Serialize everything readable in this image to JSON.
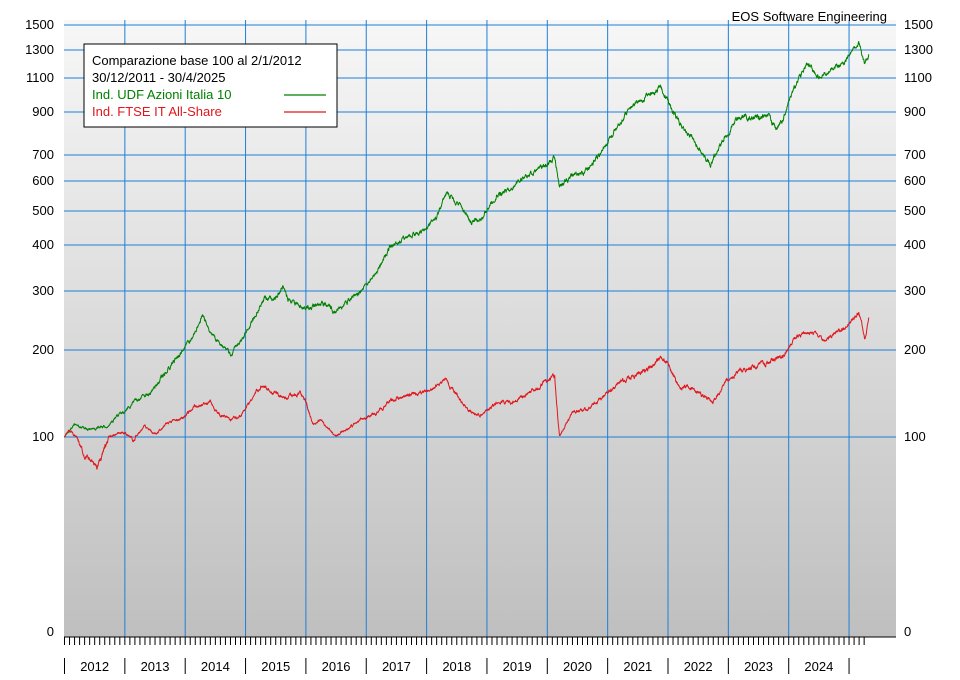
{
  "credit": "EOS Software Engineering",
  "legend": {
    "title": "Comparazione base 100 al 2/1/2012",
    "range": "30/12/2011 - 30/4/2025"
  },
  "colors": {
    "udf": "#008000",
    "ftse": "#e0161b",
    "grid": "#1e7fd6",
    "bg_top": "#f7f7f7",
    "bg_bottom": "#bfbfbf"
  },
  "chart_data": {
    "type": "line",
    "y_scale": "log-like",
    "ylim": [
      0,
      1500
    ],
    "y_ticks": [
      0,
      100,
      200,
      300,
      400,
      500,
      600,
      700,
      900,
      1100,
      1300,
      1500
    ],
    "x_ticks": [
      "2012",
      "2013",
      "2014",
      "2015",
      "2016",
      "2017",
      "2018",
      "2019",
      "2020",
      "2021",
      "2022",
      "2023",
      "2024"
    ],
    "xlim": [
      "2011-12-30",
      "2025-04-30"
    ],
    "grid": true,
    "legend_position": "top-left",
    "series": [
      {
        "name": "Ind. UDF Azioni Italia 10",
        "color": "#008000",
        "points": [
          [
            "2011-12-30",
            100
          ],
          [
            "2012-03-01",
            115
          ],
          [
            "2012-06-01",
            108
          ],
          [
            "2012-09-01",
            112
          ],
          [
            "2012-12-01",
            125
          ],
          [
            "2013-03-01",
            140
          ],
          [
            "2013-06-01",
            150
          ],
          [
            "2013-09-01",
            175
          ],
          [
            "2013-12-01",
            195
          ],
          [
            "2014-03-01",
            230
          ],
          [
            "2014-04-15",
            260
          ],
          [
            "2014-06-01",
            230
          ],
          [
            "2014-08-01",
            210
          ],
          [
            "2014-10-01",
            195
          ],
          [
            "2014-12-01",
            215
          ],
          [
            "2015-03-01",
            260
          ],
          [
            "2015-05-01",
            290
          ],
          [
            "2015-07-01",
            285
          ],
          [
            "2015-08-15",
            310
          ],
          [
            "2015-10-01",
            280
          ],
          [
            "2016-01-01",
            270
          ],
          [
            "2016-04-01",
            280
          ],
          [
            "2016-07-01",
            265
          ],
          [
            "2016-09-01",
            280
          ],
          [
            "2016-12-01",
            300
          ],
          [
            "2017-03-01",
            340
          ],
          [
            "2017-06-01",
            400
          ],
          [
            "2017-09-01",
            420
          ],
          [
            "2017-12-01",
            440
          ],
          [
            "2018-03-01",
            480
          ],
          [
            "2018-05-01",
            560
          ],
          [
            "2018-07-01",
            530
          ],
          [
            "2018-10-01",
            470
          ],
          [
            "2018-12-01",
            480
          ],
          [
            "2019-03-01",
            550
          ],
          [
            "2019-06-01",
            580
          ],
          [
            "2019-09-01",
            620
          ],
          [
            "2019-12-01",
            650
          ],
          [
            "2020-02-15",
            690
          ],
          [
            "2020-03-15",
            580
          ],
          [
            "2020-06-01",
            620
          ],
          [
            "2020-09-01",
            640
          ],
          [
            "2020-12-01",
            720
          ],
          [
            "2021-03-01",
            830
          ],
          [
            "2021-06-01",
            940
          ],
          [
            "2021-09-01",
            1000
          ],
          [
            "2021-11-15",
            1050
          ],
          [
            "2021-12-15",
            1000
          ],
          [
            "2022-03-01",
            850
          ],
          [
            "2022-06-01",
            780
          ],
          [
            "2022-09-15",
            660
          ],
          [
            "2022-12-01",
            770
          ],
          [
            "2023-03-01",
            880
          ],
          [
            "2023-06-01",
            870
          ],
          [
            "2023-09-01",
            880
          ],
          [
            "2023-10-15",
            810
          ],
          [
            "2023-12-01",
            880
          ],
          [
            "2024-03-01",
            1100
          ],
          [
            "2024-05-01",
            1200
          ],
          [
            "2024-07-01",
            1100
          ],
          [
            "2024-09-01",
            1150
          ],
          [
            "2024-12-01",
            1200
          ],
          [
            "2025-02-01",
            1320
          ],
          [
            "2025-03-01",
            1350
          ],
          [
            "2025-04-08",
            1200
          ],
          [
            "2025-04-30",
            1270
          ]
        ]
      },
      {
        "name": "Ind. FTSE IT All-Share",
        "color": "#e0161b",
        "points": [
          [
            "2011-12-30",
            100
          ],
          [
            "2012-02-01",
            108
          ],
          [
            "2012-05-01",
            90
          ],
          [
            "2012-07-15",
            85
          ],
          [
            "2012-10-01",
            100
          ],
          [
            "2012-12-01",
            105
          ],
          [
            "2013-03-01",
            100
          ],
          [
            "2013-05-01",
            112
          ],
          [
            "2013-07-01",
            102
          ],
          [
            "2013-10-01",
            118
          ],
          [
            "2013-12-01",
            120
          ],
          [
            "2014-03-01",
            135
          ],
          [
            "2014-06-01",
            140
          ],
          [
            "2014-08-01",
            125
          ],
          [
            "2014-10-01",
            120
          ],
          [
            "2014-12-01",
            125
          ],
          [
            "2015-03-01",
            150
          ],
          [
            "2015-04-15",
            160
          ],
          [
            "2015-07-01",
            150
          ],
          [
            "2015-09-01",
            145
          ],
          [
            "2015-12-01",
            150
          ],
          [
            "2016-01-01",
            140
          ],
          [
            "2016-02-15",
            115
          ],
          [
            "2016-04-01",
            120
          ],
          [
            "2016-06-27",
            102
          ],
          [
            "2016-09-01",
            108
          ],
          [
            "2016-12-01",
            120
          ],
          [
            "2017-03-01",
            128
          ],
          [
            "2017-06-01",
            142
          ],
          [
            "2017-09-01",
            148
          ],
          [
            "2017-12-01",
            150
          ],
          [
            "2018-05-01",
            165
          ],
          [
            "2018-07-01",
            148
          ],
          [
            "2018-10-01",
            128
          ],
          [
            "2018-12-01",
            125
          ],
          [
            "2019-03-01",
            140
          ],
          [
            "2019-06-01",
            140
          ],
          [
            "2019-09-01",
            150
          ],
          [
            "2019-12-01",
            160
          ],
          [
            "2020-02-15",
            170
          ],
          [
            "2020-03-15",
            102
          ],
          [
            "2020-06-01",
            130
          ],
          [
            "2020-09-01",
            132
          ],
          [
            "2020-12-01",
            145
          ],
          [
            "2021-03-01",
            160
          ],
          [
            "2021-06-01",
            170
          ],
          [
            "2021-09-01",
            178
          ],
          [
            "2021-11-15",
            190
          ],
          [
            "2022-01-01",
            185
          ],
          [
            "2022-03-08",
            158
          ],
          [
            "2022-06-01",
            155
          ],
          [
            "2022-09-30",
            140
          ],
          [
            "2022-12-01",
            160
          ],
          [
            "2023-03-01",
            175
          ],
          [
            "2023-06-01",
            180
          ],
          [
            "2023-09-01",
            185
          ],
          [
            "2023-12-01",
            195
          ],
          [
            "2024-03-01",
            225
          ],
          [
            "2024-06-01",
            230
          ],
          [
            "2024-08-05",
            215
          ],
          [
            "2024-10-01",
            230
          ],
          [
            "2024-12-01",
            235
          ],
          [
            "2025-03-01",
            265
          ],
          [
            "2025-04-08",
            220
          ],
          [
            "2025-04-30",
            255
          ]
        ]
      }
    ]
  }
}
